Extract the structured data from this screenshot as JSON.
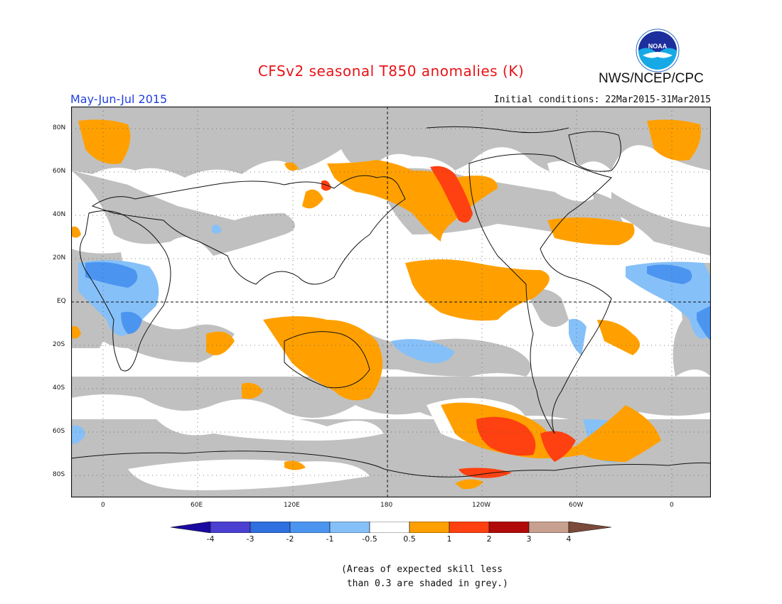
{
  "header": {
    "title": "CFSv2 seasonal T850 anomalies (K)",
    "org": "NWS/NCEP/CPC",
    "logo_text": "NOAA",
    "period": "May-Jun-Jul 2015",
    "initial_conditions": "Initial conditions: 22Mar2015-31Mar2015"
  },
  "map": {
    "lat_labels": [
      "80N",
      "60N",
      "40N",
      "20N",
      "EQ",
      "20S",
      "40S",
      "60S",
      "80S"
    ],
    "lon_labels": [
      "0",
      "60E",
      "120E",
      "180",
      "120W",
      "60W",
      "0"
    ]
  },
  "colorbar": {
    "labels": [
      "-4",
      "-3",
      "-2",
      "-1",
      "-0.5",
      "0.5",
      "1",
      "2",
      "3",
      "4"
    ],
    "colors": [
      "#1a0aa0",
      "#4a3fd0",
      "#2f6fe0",
      "#4b95f0",
      "#86c0f8",
      "#ffffff",
      "#ffa000",
      "#ff4010",
      "#b00a0a",
      "#c8a090",
      "#7a4a3a"
    ],
    "skill_mask_color": "#c0c0c0"
  },
  "note": {
    "line1": "(Areas of expected skill less",
    "line2": " than 0.3 are shaded in grey.)"
  }
}
